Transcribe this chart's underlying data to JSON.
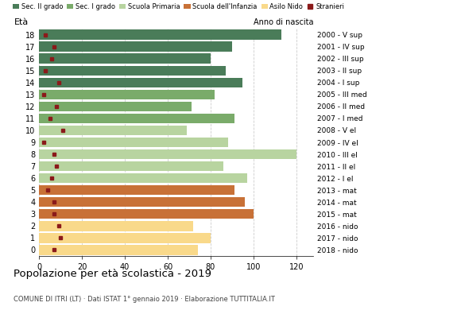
{
  "ages": [
    18,
    17,
    16,
    15,
    14,
    13,
    12,
    11,
    10,
    9,
    8,
    7,
    6,
    5,
    4,
    3,
    2,
    1,
    0
  ],
  "anni": [
    "2000 - V sup",
    "2001 - IV sup",
    "2002 - III sup",
    "2003 - II sup",
    "2004 - I sup",
    "2005 - III med",
    "2006 - II med",
    "2007 - I med",
    "2008 - V el",
    "2009 - IV el",
    "2010 - III el",
    "2011 - II el",
    "2012 - I el",
    "2013 - mat",
    "2014 - mat",
    "2015 - mat",
    "2016 - nido",
    "2017 - nido",
    "2018 - nido"
  ],
  "values": [
    113,
    90,
    80,
    87,
    95,
    82,
    71,
    91,
    69,
    88,
    120,
    86,
    97,
    91,
    96,
    100,
    72,
    80,
    74
  ],
  "stranieri": [
    3,
    7,
    6,
    3,
    9,
    2,
    8,
    5,
    11,
    2,
    7,
    8,
    6,
    4,
    7,
    7,
    9,
    10,
    7
  ],
  "category_colors": [
    "#4a7c59",
    "#4a7c59",
    "#4a7c59",
    "#4a7c59",
    "#4a7c59",
    "#7aab6a",
    "#7aab6a",
    "#7aab6a",
    "#b8d4a0",
    "#b8d4a0",
    "#b8d4a0",
    "#b8d4a0",
    "#b8d4a0",
    "#c87137",
    "#c87137",
    "#c87137",
    "#f9d98a",
    "#f9d98a",
    "#f9d98a"
  ],
  "stranieri_color": "#8b1a1a",
  "xlim": [
    0,
    128
  ],
  "xticks": [
    0,
    20,
    40,
    60,
    80,
    100,
    120
  ],
  "legend_labels": [
    "Sec. II grado",
    "Sec. I grado",
    "Scuola Primaria",
    "Scuola dell'Infanzia",
    "Asilo Nido",
    "Stranieri"
  ],
  "legend_colors": [
    "#4a7c59",
    "#7aab6a",
    "#b8d4a0",
    "#c87137",
    "#f9d98a",
    "#8b1a1a"
  ],
  "title": "Popolazione per età scolastica - 2019",
  "subtitle": "COMUNE DI ITRI (LT) · Dati ISTAT 1° gennaio 2019 · Elaborazione TUTTITALIA.IT",
  "ylabel_left": "Età",
  "ylabel_right": "Anno di nascita",
  "grid_color": "#cccccc"
}
